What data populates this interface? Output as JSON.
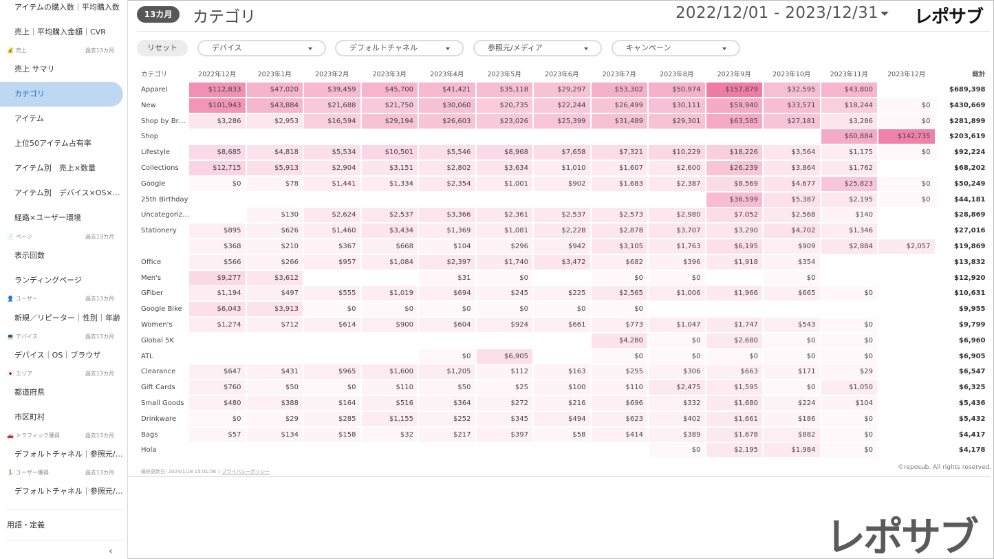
{
  "header": {
    "period_badge": "13カ月",
    "title": "カテゴリ",
    "date_range": "2022/12/01 - 2023/12/31",
    "brand": "レポサブ"
  },
  "sidebar": {
    "items": [
      {
        "label": "アイテムの購入数｜平均購入数",
        "active": false
      },
      {
        "label": "売上｜平均購入金額｜CVR",
        "active": false
      },
      {
        "label": "売上 サマリ",
        "active": false
      },
      {
        "label": "カテゴリ",
        "active": true
      },
      {
        "label": "アイテム",
        "active": false
      },
      {
        "label": "上位50アイテム占有率",
        "active": false
      },
      {
        "label": "アイテム別　売上×数量",
        "active": false
      },
      {
        "label": "アイテム別　デバイス×OS×ブラウザ",
        "active": false
      },
      {
        "label": "経路×ユーザー環境",
        "active": false
      },
      {
        "label": "表示回数",
        "active": false
      },
      {
        "label": "ランディングページ",
        "active": false
      },
      {
        "label": "新規／リピーター｜性別｜年齢",
        "active": false
      },
      {
        "label": "デバイス｜OS｜ブラウザ",
        "active": false
      },
      {
        "label": "都道府県",
        "active": false
      },
      {
        "label": "市区町村",
        "active": false
      },
      {
        "label": "デフォルトチャネル｜参照元/メディア",
        "active": false
      },
      {
        "label": "デフォルトチャネル｜参照元/メディア",
        "active": false
      },
      {
        "label": "用語・定義",
        "active": false
      }
    ],
    "sections": [
      {
        "icon": "💰",
        "label": "売上",
        "sub": "過去13カ月"
      },
      {
        "icon": "📄",
        "label": "ページ",
        "sub": "過去13カ月"
      },
      {
        "icon": "👤",
        "label": "ユーザー",
        "sub": "過去13カ月"
      },
      {
        "icon": "💻",
        "label": "デバイス",
        "sub": "過去13カ月"
      },
      {
        "icon": "🇯🇵",
        "label": "エリア",
        "sub": "過去13カ月"
      },
      {
        "icon": "🚗",
        "label": "トラフィック獲得",
        "sub": "過去13カ月"
      },
      {
        "icon": "🏃",
        "label": "ユーザー獲得",
        "sub": "過去13カ月"
      }
    ],
    "collapse_glyph": "‹"
  },
  "filters": {
    "reset": "リセット",
    "dropdowns": [
      "デバイス",
      "デフォルトチャネル",
      "参照元/メディア",
      "キャンペーン"
    ]
  },
  "table": {
    "category_header": "カテゴリ",
    "months": [
      "2022年12月",
      "2023年1月",
      "2023年2月",
      "2023年3月",
      "2023年4月",
      "2023年5月",
      "2023年6月",
      "2023年7月",
      "2023年8月",
      "2023年9月",
      "2023年10月",
      "2023年11月",
      "2023年12月"
    ],
    "total_header": "総計",
    "heat_color": "#e8447f",
    "rows": [
      {
        "category": "Apparel",
        "values": [
          112833,
          47020,
          39459,
          45700,
          41421,
          35118,
          29297,
          53302,
          50974,
          157879,
          32595,
          43800,
          null
        ],
        "total": "$689,398"
      },
      {
        "category": "New",
        "values": [
          101943,
          43884,
          21688,
          21750,
          30060,
          20735,
          22244,
          26499,
          30111,
          59940,
          33571,
          18244,
          0
        ],
        "total": "$430,669"
      },
      {
        "category": "Shop by Brand",
        "values": [
          3286,
          2953,
          16594,
          29194,
          26603,
          23026,
          25399,
          31489,
          29301,
          63585,
          27181,
          3286,
          0
        ],
        "total": "$281,899"
      },
      {
        "category": "Shop",
        "values": [
          null,
          null,
          null,
          null,
          null,
          null,
          null,
          null,
          null,
          null,
          null,
          60884,
          142735
        ],
        "total": "$203,619"
      },
      {
        "category": "Lifestyle",
        "values": [
          8685,
          4818,
          5534,
          10501,
          5546,
          8968,
          7658,
          7321,
          10229,
          18226,
          3564,
          1175,
          0
        ],
        "total": "$92,224"
      },
      {
        "category": "Collections",
        "values": [
          12715,
          5913,
          2904,
          3151,
          2802,
          3634,
          1010,
          1607,
          2600,
          26239,
          3864,
          1762,
          null
        ],
        "total": "$68,202"
      },
      {
        "category": "Google",
        "values": [
          0,
          78,
          1441,
          1334,
          2354,
          1001,
          902,
          1683,
          2387,
          8569,
          4677,
          25823,
          0
        ],
        "total": "$50,249"
      },
      {
        "category": "25th Birthday",
        "values": [
          null,
          null,
          null,
          null,
          null,
          null,
          null,
          null,
          null,
          36599,
          5387,
          2195,
          0
        ],
        "total": "$44,181"
      },
      {
        "category": "Uncategorized Items",
        "values": [
          null,
          130,
          2624,
          2537,
          3366,
          2361,
          2537,
          2573,
          2980,
          7052,
          2568,
          140,
          null
        ],
        "total": "$28,869"
      },
      {
        "category": "Stationery",
        "values": [
          895,
          626,
          1460,
          3434,
          1369,
          1081,
          2228,
          2878,
          3707,
          3290,
          4702,
          1346,
          null
        ],
        "total": "$27,016"
      },
      {
        "category": "",
        "values": [
          368,
          210,
          367,
          668,
          104,
          296,
          942,
          3105,
          1763,
          6195,
          909,
          2884,
          2057
        ],
        "total": "$19,869"
      },
      {
        "category": "Office",
        "values": [
          566,
          266,
          957,
          1084,
          2397,
          1740,
          3472,
          682,
          396,
          1918,
          354,
          null,
          null
        ],
        "total": "$13,832"
      },
      {
        "category": "Men's",
        "values": [
          9277,
          3612,
          null,
          null,
          31,
          0,
          null,
          0,
          0,
          null,
          0,
          null,
          null
        ],
        "total": "$12,920"
      },
      {
        "category": "GFiber",
        "values": [
          1194,
          497,
          555,
          1019,
          694,
          245,
          225,
          2565,
          1006,
          1966,
          665,
          0,
          null
        ],
        "total": "$10,631"
      },
      {
        "category": "Google Bike",
        "values": [
          6043,
          3913,
          0,
          0,
          0,
          0,
          0,
          0,
          null,
          null,
          null,
          null,
          null
        ],
        "total": "$9,955"
      },
      {
        "category": "Women's",
        "values": [
          1274,
          712,
          614,
          900,
          604,
          924,
          661,
          773,
          1047,
          1747,
          543,
          0,
          null
        ],
        "total": "$9,799"
      },
      {
        "category": "Global 5K",
        "values": [
          null,
          null,
          null,
          null,
          null,
          null,
          null,
          4280,
          0,
          2680,
          0,
          0,
          null
        ],
        "total": "$6,960"
      },
      {
        "category": "ATL",
        "values": [
          null,
          null,
          null,
          null,
          0,
          6905,
          null,
          0,
          0,
          0,
          0,
          0,
          null
        ],
        "total": "$6,905"
      },
      {
        "category": "Clearance",
        "values": [
          647,
          431,
          965,
          1600,
          1205,
          112,
          163,
          255,
          306,
          663,
          171,
          29,
          null
        ],
        "total": "$6,547"
      },
      {
        "category": "Gift Cards",
        "values": [
          760,
          50,
          0,
          110,
          50,
          25,
          100,
          110,
          2475,
          1595,
          0,
          1050,
          null
        ],
        "total": "$6,325"
      },
      {
        "category": "Small Goods",
        "values": [
          480,
          388,
          164,
          516,
          364,
          272,
          216,
          696,
          332,
          1680,
          224,
          104,
          null
        ],
        "total": "$5,436"
      },
      {
        "category": "Drinkware",
        "values": [
          0,
          29,
          285,
          1155,
          252,
          345,
          494,
          623,
          402,
          1661,
          186,
          0,
          null
        ],
        "total": "$5,432"
      },
      {
        "category": "Bags",
        "values": [
          57,
          134,
          158,
          32,
          217,
          397,
          58,
          414,
          389,
          1678,
          882,
          0,
          null
        ],
        "total": "$4,417"
      },
      {
        "category": "Hola",
        "values": [
          null,
          null,
          null,
          null,
          null,
          null,
          null,
          null,
          0,
          2195,
          1984,
          0,
          null
        ],
        "total": "$4,178"
      }
    ]
  },
  "footer": {
    "last_updated": "最終更新日: 2024/1/18 15:01:56",
    "separator": "|",
    "privacy": "プライバシーポリシー",
    "copyright": "©reposub. All rights reserved."
  },
  "watermark_logo": "レポサブ"
}
